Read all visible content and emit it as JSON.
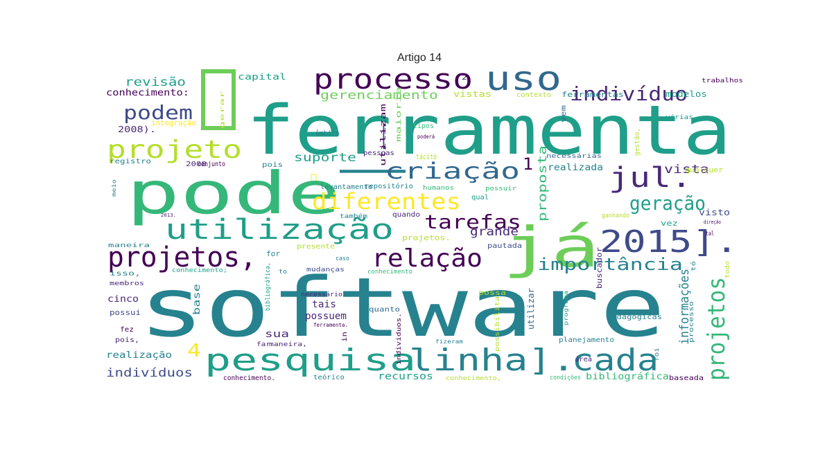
{
  "title": "Artigo 14",
  "colors": [
    "#440154",
    "#482878",
    "#3e4a89",
    "#31688e",
    "#26828e",
    "#1f9e89",
    "#35b779",
    "#6dcd59",
    "#b4de2c",
    "#fde725"
  ],
  "words": [
    {
      "t": "software",
      "c": 4
    },
    {
      "t": "ferramenta",
      "c": 5
    },
    {
      "t": "pode",
      "c": 6
    },
    {
      "t": "já",
      "c": 7
    },
    {
      "t": "—",
      "c": 4
    },
    {
      "t": "uso",
      "c": 3
    },
    {
      "t": "processo",
      "c": 0
    },
    {
      "t": "indivíduo",
      "c": 1
    },
    {
      "t": "podem",
      "c": 2
    },
    {
      "t": "projeto",
      "c": 8
    },
    {
      "t": "criação",
      "c": 3
    },
    {
      "t": "jul.",
      "c": 1
    },
    {
      "t": "diferentes",
      "c": 9
    },
    {
      "t": "utilização",
      "c": 5
    },
    {
      "t": "geração",
      "c": 5
    },
    {
      "t": "2015].",
      "c": 2
    },
    {
      "t": "tarefas",
      "c": 0
    },
    {
      "t": "projetos,",
      "c": 0
    },
    {
      "t": "relação",
      "c": 0
    },
    {
      "t": "importância",
      "c": 4
    },
    {
      "t": "pesquisa",
      "c": 5
    },
    {
      "t": "linha].",
      "c": 4
    },
    {
      "t": "cada",
      "c": 4
    },
    {
      "t": "projetos",
      "c": 6
    },
    {
      "t": "gerenciamento",
      "c": 7
    },
    {
      "t": "revisão",
      "c": 5
    },
    {
      "t": "conhecimento:",
      "c": 0
    },
    {
      "t": "capital",
      "c": 5
    },
    {
      "t": "suporte",
      "c": 5
    },
    {
      "t": "vista",
      "c": 1
    },
    {
      "t": "realizada",
      "c": 4
    },
    {
      "t": "proposta",
      "c": 6
    },
    {
      "t": "informações",
      "c": 4
    },
    {
      "t": "grande",
      "c": 1
    },
    {
      "t": "indivíduos",
      "c": 2
    },
    {
      "t": "realização",
      "c": 4
    },
    {
      "t": "recursos",
      "c": 5
    },
    {
      "t": "bibliográfica",
      "c": 6
    },
    {
      "t": "cinco",
      "c": 1
    },
    {
      "t": "tais",
      "c": 1
    },
    {
      "t": "possuem",
      "c": 1
    },
    {
      "t": "sua",
      "c": 1
    },
    {
      "t": "base",
      "c": 4
    },
    {
      "t": "4",
      "c": 9
    },
    {
      "t": "1",
      "c": 0
    },
    {
      "t": "[",
      "c": 2
    },
    {
      "t": "modelos",
      "c": 5
    },
    {
      "t": "visto",
      "c": 2
    },
    {
      "t": "ferramentas",
      "c": 4
    },
    {
      "t": "2008).",
      "c": 1
    },
    {
      "t": "trabalhos",
      "c": 0
    },
    {
      "t": "utilizam",
      "c": 0
    },
    {
      "t": "maioria",
      "c": 7
    },
    {
      "t": "vistas",
      "c": 8
    },
    {
      "t": "contexto",
      "c": 8
    },
    {
      "t": "várias",
      "c": 5
    },
    {
      "t": "tipos",
      "c": 6
    },
    {
      "t": "poderá",
      "c": 0
    },
    {
      "t": "pessoas",
      "c": 1
    },
    {
      "t": "tácito",
      "c": 8
    },
    {
      "t": "âmbito",
      "c": 4
    },
    {
      "t": "integração",
      "c": 9
    },
    {
      "t": "registro",
      "c": 4
    },
    {
      "t": "2008",
      "c": 1
    },
    {
      "t": "conjunto",
      "c": 0
    },
    {
      "t": "pois",
      "c": 4
    },
    {
      "t": "levantamento",
      "c": 4
    },
    {
      "t": "repositório",
      "c": 4
    },
    {
      "t": "humanos",
      "c": 6
    },
    {
      "t": "possuir",
      "c": 6
    },
    {
      "t": "necessárias",
      "c": 3
    },
    {
      "t": "qualquer",
      "c": 8
    },
    {
      "t": "qual",
      "c": 5
    },
    {
      "t": "quando",
      "c": 1
    },
    {
      "t": "também",
      "c": 4
    },
    {
      "t": "ganhando",
      "c": 8
    },
    {
      "t": "direção",
      "c": 0
    },
    {
      "t": "tal",
      "c": 0
    },
    {
      "t": "pautada",
      "c": 2
    },
    {
      "t": "maneira",
      "c": 4
    },
    {
      "t": "presente",
      "c": 8
    },
    {
      "t": "projetos.",
      "c": 8
    },
    {
      "t": "isso,",
      "c": 4
    },
    {
      "t": "conhecimento;",
      "c": 5
    },
    {
      "t": "for",
      "c": 4
    },
    {
      "t": "caso",
      "c": 4
    },
    {
      "t": "to",
      "c": 4
    },
    {
      "t": "mudanças",
      "c": 2
    },
    {
      "t": "conhecimento",
      "c": 6
    },
    {
      "t": "membros",
      "c": 1
    },
    {
      "t": "buscador",
      "c": 1
    },
    {
      "t": "possa",
      "c": 8
    },
    {
      "t": "necessário",
      "c": 1
    },
    {
      "t": "quanto",
      "c": 3
    },
    {
      "t": "possui",
      "c": 2
    },
    {
      "t": "fez",
      "c": 0
    },
    {
      "t": "pois,",
      "c": 1
    },
    {
      "t": "ferramenta.",
      "c": 0
    },
    {
      "t": "in",
      "c": 0
    },
    {
      "t": "far",
      "c": 1
    },
    {
      "t": "maneira,",
      "c": 1
    },
    {
      "t": "fizeram",
      "c": 4
    },
    {
      "t": "planejamento",
      "c": 4
    },
    {
      "t": "programa",
      "c": 5
    },
    {
      "t": "pedagógicas",
      "c": 4
    },
    {
      "t": "área",
      "c": 1
    },
    {
      "t": "conhecimento.",
      "c": 0
    },
    {
      "t": "teórico",
      "c": 4
    },
    {
      "t": "conhecimento,",
      "c": 8
    },
    {
      "t": "condições",
      "c": 6
    },
    {
      "t": "baseada",
      "c": 0
    },
    {
      "t": "processo",
      "c": 4
    },
    {
      "t": "utilizar",
      "c": 3
    },
    {
      "t": "possibilita",
      "c": 8
    },
    {
      "t": "foi",
      "c": 4
    },
    {
      "t": "gestão,",
      "c": 8
    },
    {
      "t": "vez",
      "c": 5
    },
    {
      "t": "meio",
      "c": 4
    },
    {
      "t": "gerar",
      "c": 8
    },
    {
      "t": "2",
      "c": 0
    },
    {
      "t": "todo",
      "c": 8
    },
    {
      "t": "tó",
      "c": 4
    },
    {
      "t": "bibliográfica,",
      "c": 5
    },
    {
      "t": "individuos.",
      "c": 0
    },
    {
      "t": "vem",
      "c": 3
    },
    {
      "t": "2013.",
      "c": 1
    }
  ]
}
